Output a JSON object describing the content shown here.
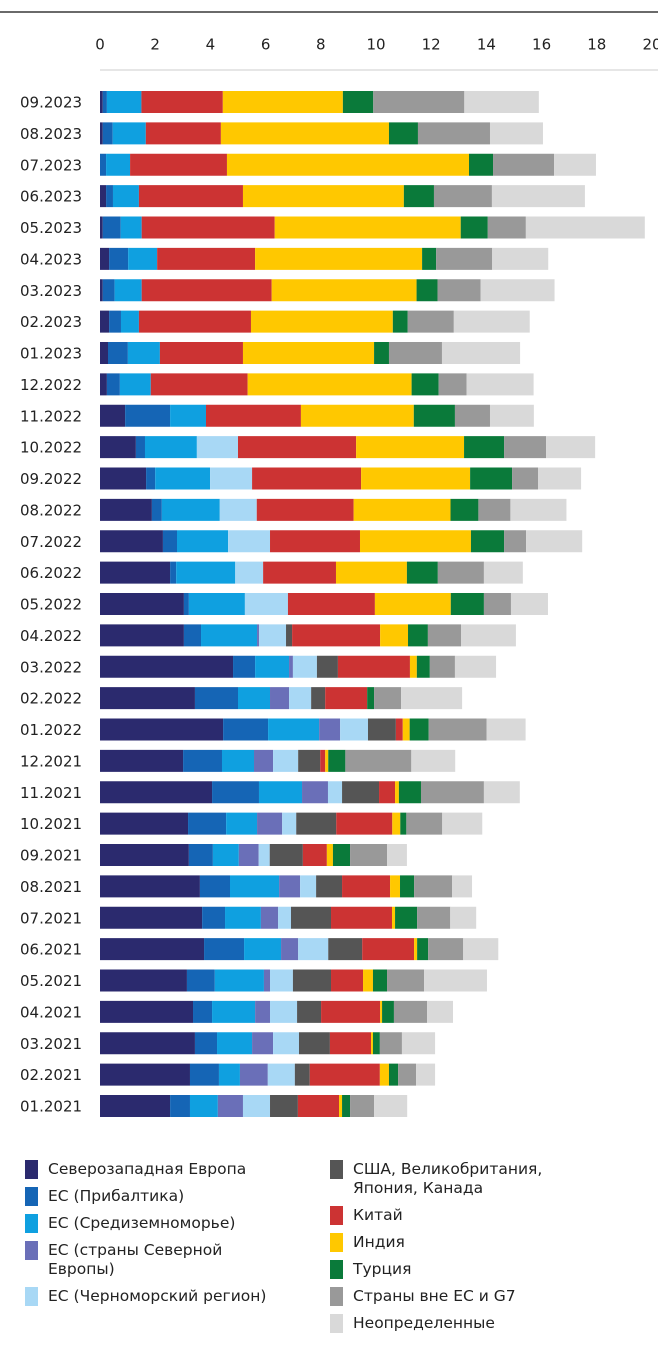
{
  "chart_data": {
    "type": "stacked-bar-horizontal",
    "categories": [
      "09.2023",
      "08.2023",
      "07.2023",
      "06.2023",
      "05.2023",
      "04.2023",
      "03.2023",
      "02.2023",
      "01.2023",
      "12.2022",
      "11.2022",
      "10.2022",
      "09.2022",
      "08.2022",
      "07.2022",
      "06.2022",
      "05.2022",
      "04.2022",
      "03.2022",
      "02.2022",
      "01.2022",
      "12.2021",
      "11.2021",
      "10.2021",
      "09.2021",
      "08.2021",
      "07.2021",
      "06.2021",
      "05.2021",
      "04.2021",
      "03.2021",
      "02.2021",
      "01.2021"
    ],
    "xlim": [
      0,
      20
    ],
    "xticks": [
      0,
      2,
      4,
      6,
      8,
      10,
      12,
      14,
      16,
      18,
      20
    ],
    "series": [
      {
        "name": "Северозападная Европа",
        "color": "#2b2a6e",
        "values": [
          0.1,
          0.1,
          0,
          0.22,
          0.1,
          0.33,
          0.1,
          0.33,
          0.29,
          0.25,
          0.91,
          1.3,
          1.67,
          1.88,
          2.28,
          2.54,
          3.04,
          3.04,
          4.82,
          3.44,
          4.46,
          3.01,
          4.06,
          3.19,
          3.22,
          3.62,
          3.7,
          3.77,
          3.15,
          3.37,
          3.44,
          3.26,
          2.54
        ]
      },
      {
        "name": "ЕС (Прибалтика)",
        "color": "#1565b5",
        "values": [
          0.15,
          0.36,
          0.22,
          0.25,
          0.65,
          0.69,
          0.43,
          0.43,
          0.72,
          0.47,
          1.63,
          0.33,
          0.33,
          0.36,
          0.51,
          0.22,
          0.18,
          0.62,
          0.8,
          1.56,
          1.63,
          1.41,
          1.7,
          1.38,
          0.87,
          1.09,
          0.83,
          1.45,
          1.01,
          0.69,
          0.8,
          1.05,
          0.72
        ]
      },
      {
        "name": "ЕС (Средиземноморье)",
        "color": "#0fa0e0",
        "values": [
          1.25,
          1.2,
          0.87,
          0.94,
          0.76,
          1.05,
          0.98,
          0.65,
          1.16,
          1.12,
          1.3,
          1.88,
          1.99,
          2.1,
          1.85,
          2.14,
          2.03,
          2.03,
          1.23,
          1.16,
          1.85,
          1.16,
          1.56,
          1.12,
          0.94,
          1.78,
          1.3,
          1.34,
          1.78,
          1.56,
          1.27,
          0.76,
          1.01
        ]
      },
      {
        "name": "ЕС (страны Северной Европы)",
        "color": "#6a6fb8",
        "values": [
          0,
          0,
          0,
          0,
          0,
          0,
          0,
          0,
          0,
          0,
          0,
          0,
          0,
          0,
          0,
          0,
          0,
          0.07,
          0.14,
          0.69,
          0.76,
          0.69,
          0.94,
          0.91,
          0.72,
          0.76,
          0.62,
          0.62,
          0.22,
          0.54,
          0.76,
          1.01,
          0.91
        ]
      },
      {
        "name": "ЕС (Черноморский регион)",
        "color": "#a8d8f5",
        "values": [
          0,
          0,
          0,
          0,
          0,
          0,
          0,
          0,
          0,
          0,
          0,
          1.49,
          1.52,
          1.34,
          1.52,
          1.01,
          1.56,
          0.98,
          0.87,
          0.8,
          1.01,
          0.91,
          0.51,
          0.51,
          0.4,
          0.58,
          0.47,
          1.09,
          0.83,
          0.98,
          0.94,
          0.98,
          0.98
        ]
      },
      {
        "name": "США, Великобритания, Япония, Канада",
        "color": "#555555",
        "values": [
          0,
          0,
          0,
          0,
          0,
          0,
          0,
          0,
          0,
          0,
          0,
          0,
          0,
          0,
          0,
          0,
          0,
          0.22,
          0.76,
          0.51,
          1.01,
          0.8,
          1.34,
          1.45,
          1.2,
          0.94,
          1.45,
          1.23,
          1.38,
          0.87,
          1.12,
          0.54,
          1.01
        ]
      },
      {
        "name": "Китай",
        "color": "#cc3333",
        "values": [
          2.95,
          2.72,
          3.51,
          3.77,
          4.82,
          3.55,
          4.71,
          4.06,
          3.01,
          3.51,
          3.44,
          4.28,
          3.95,
          3.51,
          3.26,
          2.64,
          3.15,
          3.19,
          2.61,
          1.52,
          0.25,
          0.18,
          0.58,
          2.03,
          0.87,
          1.74,
          2.21,
          1.88,
          1.16,
          2.14,
          1.49,
          2.54,
          1.49
        ]
      },
      {
        "name": "Индия",
        "color": "#ffc800",
        "values": [
          4.35,
          6.09,
          8.77,
          5.83,
          6.74,
          6.05,
          5.25,
          5.14,
          4.75,
          5.94,
          4.09,
          3.91,
          3.95,
          3.51,
          4.02,
          2.57,
          2.75,
          1.01,
          0.25,
          0,
          0.25,
          0.11,
          0.14,
          0.29,
          0.22,
          0.36,
          0.11,
          0.11,
          0.36,
          0.07,
          0.07,
          0.33,
          0.11
        ]
      },
      {
        "name": "Турция",
        "color": "#0a7a3a",
        "values": [
          1.1,
          1.05,
          0.87,
          1.09,
          0.98,
          0.51,
          0.76,
          0.54,
          0.54,
          0.98,
          1.49,
          1.45,
          1.52,
          1.01,
          1.2,
          1.12,
          1.2,
          0.72,
          0.47,
          0.25,
          0.69,
          0.62,
          0.8,
          0.22,
          0.62,
          0.51,
          0.8,
          0.4,
          0.51,
          0.43,
          0.25,
          0.33,
          0.29
        ]
      },
      {
        "name": "Страны вне ЕС и G7",
        "color": "#999999",
        "values": [
          3.3,
          2.61,
          2.21,
          2.1,
          1.38,
          2.03,
          1.56,
          1.67,
          1.92,
          1.01,
          1.27,
          1.52,
          0.94,
          1.16,
          0.8,
          1.67,
          0.98,
          1.2,
          0.91,
          0.98,
          2.1,
          2.39,
          2.28,
          1.3,
          1.34,
          1.38,
          1.2,
          1.27,
          1.34,
          1.2,
          0.8,
          0.65,
          0.87
        ]
      },
      {
        "name": "Неопределенные",
        "color": "#d9d9d9",
        "values": [
          2.7,
          1.92,
          1.52,
          3.37,
          4.31,
          2.03,
          2.68,
          2.75,
          2.83,
          2.43,
          1.59,
          1.78,
          1.56,
          2.03,
          2.03,
          1.41,
          1.34,
          1.99,
          1.49,
          2.21,
          1.41,
          1.59,
          1.3,
          1.45,
          0.72,
          0.72,
          0.94,
          1.27,
          2.28,
          0.94,
          1.2,
          0.69,
          1.2
        ]
      }
    ]
  }
}
